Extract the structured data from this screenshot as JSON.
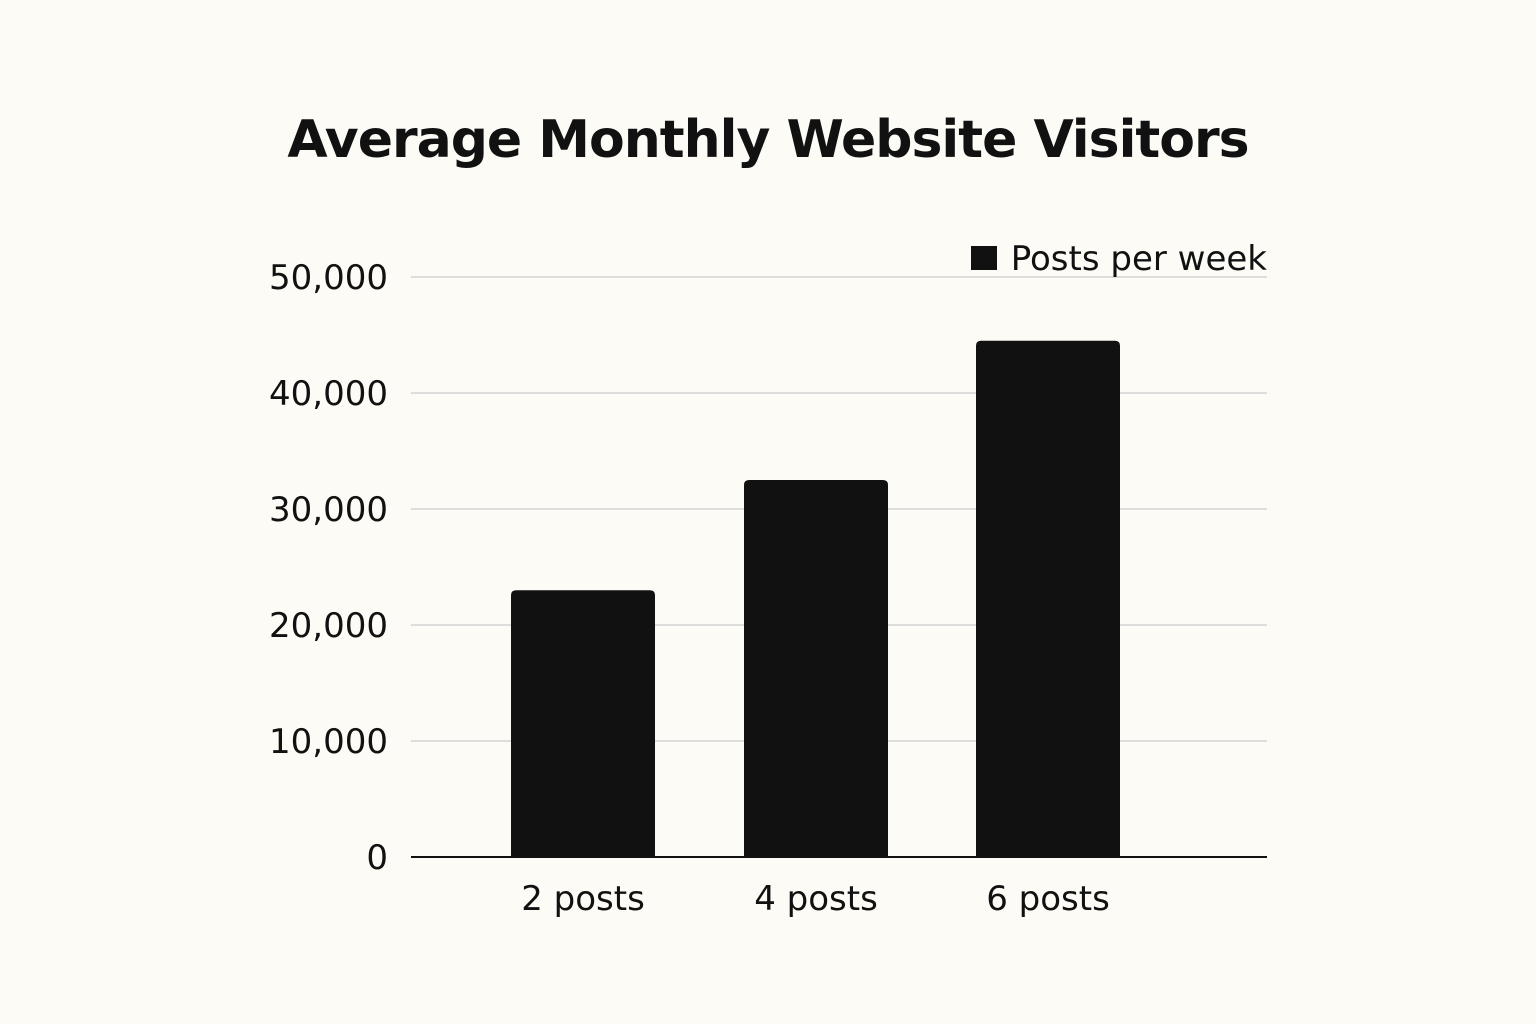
{
  "chart_data": {
    "type": "bar",
    "title": "Average Monthly Website Visitors",
    "categories": [
      "2 posts",
      "4 posts",
      "6 posts"
    ],
    "series": [
      {
        "name": "Posts per week",
        "values": [
          23000,
          32500,
          44500
        ]
      }
    ],
    "xlabel": "",
    "ylabel": "",
    "ylim": [
      0,
      50000
    ],
    "yticks": [
      0,
      10000,
      20000,
      30000,
      40000,
      50000
    ],
    "ytick_labels": [
      "0",
      "10,000",
      "20,000",
      "30,000",
      "40,000",
      "50,000"
    ],
    "grid": true,
    "legend": "top-right",
    "colors": {
      "bar": "#111111",
      "grid": "#dddddd",
      "background": "#fcfbf6"
    }
  }
}
